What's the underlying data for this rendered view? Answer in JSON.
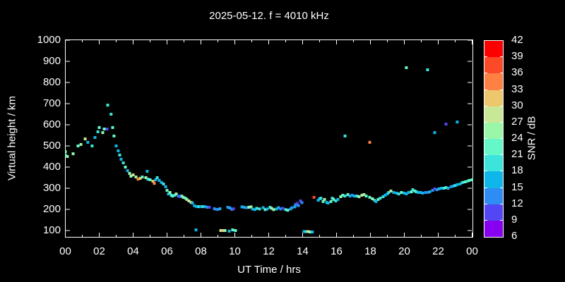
{
  "title": "2025-05-12. f = 4010 kHz",
  "axes": {
    "x_label": "UT Time / hrs",
    "y_label": "Virtual height / km",
    "x_major_hours": [
      0,
      2,
      4,
      6,
      8,
      10,
      12,
      14,
      16,
      18,
      20,
      22,
      24
    ],
    "x_major_labels": [
      "00",
      "02",
      "04",
      "06",
      "08",
      "10",
      "12",
      "14",
      "16",
      "18",
      "20",
      "22",
      "00"
    ],
    "x_minor_hours": [
      1,
      3,
      5,
      7,
      9,
      11,
      13,
      15,
      17,
      19,
      21,
      23
    ],
    "y_ticks": [
      100,
      200,
      300,
      400,
      500,
      600,
      700,
      800,
      900,
      1000
    ]
  },
  "colorbar": {
    "label": "SNR / dB",
    "levels": [
      6,
      9,
      12,
      15,
      18,
      21,
      24,
      27,
      30,
      33,
      36,
      39,
      42
    ],
    "colors_bottom_to_top": [
      "#8800F0",
      "#5346F5",
      "#2F8CF2",
      "#0FB6E9",
      "#3CE4DC",
      "#66F7C8",
      "#9AF7AA",
      "#C9E897",
      "#EDC76E",
      "#FC8143",
      "#FC4A28",
      "#FE0000"
    ]
  },
  "chart_data": {
    "type": "scatter",
    "title": "2025-05-12. f = 4010 kHz",
    "xlabel": "UT Time / hrs",
    "ylabel": "Virtual height / km",
    "xlim": [
      0,
      24
    ],
    "ylim": [
      70,
      1000
    ],
    "grid": false,
    "background": "#000000",
    "marker": "square-4px",
    "color_scale": {
      "label": "SNR / dB",
      "min": 6,
      "max": 42,
      "step": 3,
      "colors": [
        "#8800F0",
        "#5346F5",
        "#2F8CF2",
        "#0FB6E9",
        "#3CE4DC",
        "#66F7C8",
        "#9AF7AA",
        "#C9E897",
        "#EDC76E",
        "#FC8143",
        "#FC4A28",
        "#FE0000"
      ]
    },
    "points_format": [
      "ut_hours",
      "virtual_height_km",
      "snr_db"
    ],
    "points": [
      [
        0.0,
        473,
        25
      ],
      [
        0.0,
        457,
        22
      ],
      [
        0.12,
        450,
        25
      ],
      [
        0.46,
        463,
        25
      ],
      [
        0.75,
        500,
        22
      ],
      [
        0.92,
        507,
        25
      ],
      [
        1.17,
        533,
        28
      ],
      [
        1.33,
        517,
        16
      ],
      [
        1.58,
        500,
        19
      ],
      [
        1.75,
        540,
        16
      ],
      [
        1.92,
        567,
        19
      ],
      [
        2.0,
        587,
        22
      ],
      [
        2.21,
        563,
        25
      ],
      [
        2.29,
        580,
        22
      ],
      [
        2.46,
        580,
        10
      ],
      [
        2.5,
        693,
        19
      ],
      [
        2.7,
        650,
        19
      ],
      [
        2.79,
        587,
        22
      ],
      [
        2.87,
        547,
        22
      ],
      [
        3.0,
        500,
        16
      ],
      [
        3.12,
        477,
        16
      ],
      [
        3.21,
        457,
        19
      ],
      [
        3.29,
        437,
        16
      ],
      [
        3.42,
        420,
        19
      ],
      [
        3.54,
        400,
        22
      ],
      [
        3.67,
        383,
        16
      ],
      [
        3.79,
        370,
        25
      ],
      [
        3.87,
        357,
        25
      ],
      [
        4.0,
        363,
        28
      ],
      [
        4.17,
        353,
        25
      ],
      [
        4.29,
        343,
        34
      ],
      [
        4.42,
        347,
        31
      ],
      [
        4.54,
        353,
        22
      ],
      [
        4.75,
        350,
        25
      ],
      [
        4.83,
        380,
        16
      ],
      [
        4.87,
        343,
        19
      ],
      [
        5.0,
        340,
        22
      ],
      [
        5.17,
        333,
        31
      ],
      [
        5.25,
        323,
        34
      ],
      [
        5.33,
        340,
        16
      ],
      [
        5.42,
        350,
        19
      ],
      [
        5.54,
        337,
        16
      ],
      [
        5.67,
        327,
        16
      ],
      [
        5.79,
        320,
        19
      ],
      [
        5.92,
        307,
        16
      ],
      [
        6.0,
        290,
        22
      ],
      [
        6.08,
        273,
        16
      ],
      [
        6.17,
        280,
        25
      ],
      [
        6.25,
        267,
        19
      ],
      [
        6.33,
        263,
        22
      ],
      [
        6.46,
        267,
        19
      ],
      [
        6.54,
        273,
        25
      ],
      [
        6.67,
        263,
        13
      ],
      [
        6.75,
        260,
        10
      ],
      [
        6.87,
        263,
        22
      ],
      [
        6.96,
        257,
        25
      ],
      [
        7.08,
        253,
        22
      ],
      [
        7.17,
        247,
        25
      ],
      [
        7.29,
        240,
        28
      ],
      [
        7.42,
        233,
        28
      ],
      [
        7.5,
        230,
        16
      ],
      [
        7.62,
        217,
        16
      ],
      [
        7.71,
        103,
        16
      ],
      [
        7.75,
        213,
        16
      ],
      [
        7.87,
        213,
        19
      ],
      [
        8.0,
        213,
        16
      ],
      [
        8.12,
        213,
        19
      ],
      [
        8.25,
        213,
        16
      ],
      [
        8.37,
        210,
        13
      ],
      [
        8.5,
        210,
        10
      ],
      [
        8.79,
        203,
        13
      ],
      [
        8.92,
        200,
        13
      ],
      [
        9.0,
        200,
        13
      ],
      [
        9.12,
        203,
        16
      ],
      [
        9.17,
        100,
        28
      ],
      [
        9.29,
        100,
        31
      ],
      [
        9.42,
        100,
        25
      ],
      [
        9.58,
        210,
        13
      ],
      [
        9.67,
        97,
        16
      ],
      [
        9.71,
        207,
        16
      ],
      [
        9.83,
        200,
        13
      ],
      [
        9.87,
        103,
        22
      ],
      [
        9.92,
        203,
        10
      ],
      [
        10.04,
        100,
        22
      ],
      [
        10.42,
        212,
        16
      ],
      [
        10.54,
        210,
        16
      ],
      [
        10.67,
        208,
        13
      ],
      [
        10.83,
        210,
        25
      ],
      [
        10.96,
        212,
        25
      ],
      [
        11.04,
        202,
        16
      ],
      [
        11.17,
        199,
        16
      ],
      [
        11.29,
        205,
        19
      ],
      [
        11.46,
        202,
        19
      ],
      [
        11.67,
        208,
        16
      ],
      [
        11.79,
        199,
        22
      ],
      [
        11.92,
        202,
        16
      ],
      [
        12.08,
        210,
        19
      ],
      [
        12.17,
        205,
        25
      ],
      [
        12.29,
        199,
        25
      ],
      [
        12.46,
        202,
        16
      ],
      [
        12.58,
        208,
        16
      ],
      [
        12.71,
        202,
        13
      ],
      [
        12.83,
        205,
        10
      ],
      [
        13.0,
        199,
        19
      ],
      [
        13.12,
        196,
        22
      ],
      [
        13.29,
        202,
        16
      ],
      [
        13.37,
        208,
        13
      ],
      [
        13.54,
        212,
        16
      ],
      [
        13.58,
        222,
        13
      ],
      [
        13.67,
        228,
        10
      ],
      [
        13.75,
        218,
        13
      ],
      [
        13.87,
        240,
        10
      ],
      [
        13.96,
        232,
        13
      ],
      [
        14.08,
        95,
        16
      ],
      [
        14.21,
        95,
        19
      ],
      [
        14.33,
        95,
        28
      ],
      [
        14.46,
        93,
        25
      ],
      [
        14.58,
        93,
        16
      ],
      [
        14.67,
        257,
        37
      ],
      [
        14.92,
        243,
        16
      ],
      [
        15.0,
        250,
        16
      ],
      [
        15.08,
        253,
        19
      ],
      [
        15.21,
        237,
        22
      ],
      [
        15.29,
        247,
        25
      ],
      [
        15.42,
        233,
        16
      ],
      [
        15.5,
        230,
        16
      ],
      [
        15.67,
        237,
        22
      ],
      [
        15.75,
        253,
        19
      ],
      [
        15.83,
        247,
        22
      ],
      [
        15.96,
        240,
        19
      ],
      [
        16.08,
        247,
        16
      ],
      [
        16.25,
        260,
        25
      ],
      [
        16.37,
        267,
        22
      ],
      [
        16.5,
        263,
        19
      ],
      [
        16.5,
        547,
        19
      ],
      [
        16.67,
        270,
        22
      ],
      [
        16.79,
        263,
        16
      ],
      [
        16.92,
        267,
        13
      ],
      [
        17.04,
        263,
        16
      ],
      [
        17.21,
        263,
        19
      ],
      [
        17.33,
        260,
        25
      ],
      [
        17.5,
        267,
        28
      ],
      [
        17.62,
        270,
        25
      ],
      [
        17.75,
        263,
        22
      ],
      [
        17.96,
        257,
        22
      ],
      [
        17.96,
        517,
        34
      ],
      [
        18.12,
        250,
        25
      ],
      [
        18.25,
        243,
        19
      ],
      [
        18.33,
        237,
        16
      ],
      [
        18.46,
        247,
        22
      ],
      [
        18.58,
        253,
        19
      ],
      [
        18.75,
        260,
        19
      ],
      [
        18.87,
        267,
        16
      ],
      [
        19.0,
        273,
        16
      ],
      [
        19.08,
        280,
        19
      ],
      [
        19.21,
        287,
        28
      ],
      [
        19.37,
        280,
        16
      ],
      [
        19.54,
        277,
        16
      ],
      [
        19.67,
        273,
        19
      ],
      [
        19.83,
        280,
        22
      ],
      [
        20.0,
        277,
        16
      ],
      [
        20.12,
        273,
        16
      ],
      [
        20.12,
        870,
        22
      ],
      [
        20.25,
        280,
        16
      ],
      [
        20.42,
        283,
        22
      ],
      [
        20.5,
        293,
        19
      ],
      [
        20.62,
        287,
        22
      ],
      [
        20.71,
        283,
        19
      ],
      [
        20.83,
        280,
        16
      ],
      [
        20.96,
        280,
        16
      ],
      [
        21.08,
        277,
        16
      ],
      [
        21.25,
        280,
        13
      ],
      [
        21.37,
        280,
        13
      ],
      [
        21.37,
        860,
        19
      ],
      [
        21.5,
        283,
        16
      ],
      [
        21.67,
        290,
        13
      ],
      [
        21.79,
        297,
        10
      ],
      [
        21.79,
        563,
        16
      ],
      [
        21.92,
        293,
        13
      ],
      [
        22.04,
        297,
        16
      ],
      [
        22.17,
        300,
        16
      ],
      [
        22.33,
        300,
        19
      ],
      [
        22.46,
        303,
        22
      ],
      [
        22.46,
        603,
        10
      ],
      [
        22.58,
        300,
        16
      ],
      [
        22.75,
        307,
        13
      ],
      [
        22.87,
        310,
        16
      ],
      [
        23.0,
        313,
        19
      ],
      [
        23.12,
        317,
        16
      ],
      [
        23.12,
        613,
        16
      ],
      [
        23.29,
        320,
        16
      ],
      [
        23.42,
        327,
        19
      ],
      [
        23.58,
        330,
        22
      ],
      [
        23.71,
        333,
        19
      ],
      [
        23.83,
        337,
        22
      ],
      [
        24.0,
        340,
        22
      ]
    ]
  }
}
